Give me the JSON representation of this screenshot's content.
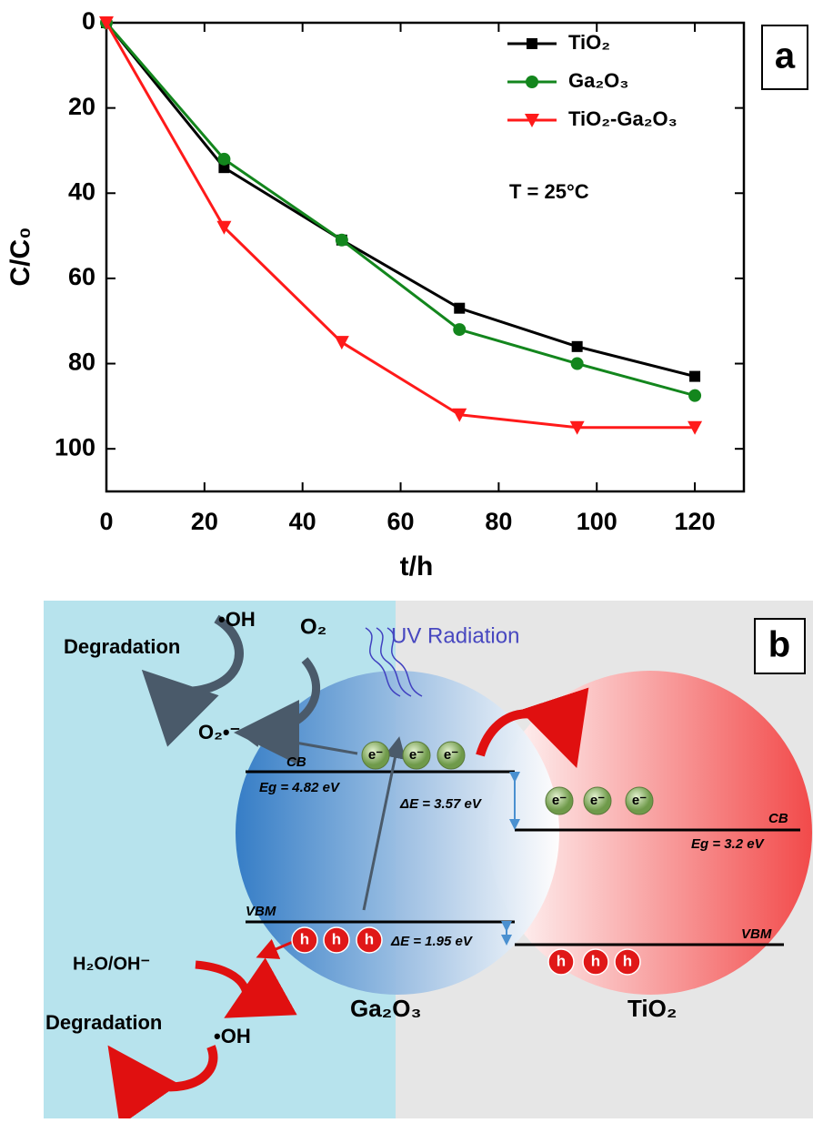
{
  "chart_data": {
    "type": "line",
    "panel_label": "a",
    "x_label": "t/h",
    "y_label": "C/C₀",
    "annotation": "T = 25°C",
    "x": [
      0,
      24,
      48,
      72,
      96,
      120
    ],
    "series": [
      {
        "name": "TiO₂",
        "color": "#000000",
        "marker": "square",
        "values": [
          0,
          34,
          51,
          67,
          76,
          83
        ]
      },
      {
        "name": "Ga₂O₃",
        "color": "#13861d",
        "marker": "circle",
        "values": [
          0,
          32,
          51,
          72,
          80,
          87.5
        ]
      },
      {
        "name": "TiO₂-Ga₂O₃",
        "color": "#ff1a1a",
        "marker": "triangle-down",
        "values": [
          0,
          48,
          75,
          92,
          95,
          95
        ]
      }
    ],
    "xlim": [
      0,
      130
    ],
    "xticks": [
      0,
      20,
      40,
      60,
      80,
      100,
      120
    ],
    "ylim": [
      0,
      110
    ],
    "yticks": [
      0,
      20,
      40,
      60,
      80,
      100
    ],
    "y_inverted": true
  },
  "diagram": {
    "panel_label": "b",
    "uv": "UV Radiation",
    "degradation_top": "Degradation",
    "oh_top": "•OH",
    "o2": "O₂",
    "superoxide": "O₂•⁻",
    "ga_cb": "CB",
    "ga_eg": "Eg = 4.82 eV",
    "de_cb": "ΔE = 3.57 eV",
    "ti_cb": "CB",
    "ti_eg": "Eg = 3.2 eV",
    "ga_vbm": "VBM",
    "de_vb": "ΔE = 1.95 eV",
    "ti_vbm": "VBM",
    "h2o": "H₂O/OH⁻",
    "ga_label": "Ga₂O₃",
    "ti_label": "TiO₂",
    "degradation_bottom": "Degradation",
    "oh_bottom": "•OH",
    "electrons": [
      "e⁻",
      "e⁻",
      "e⁻",
      "e⁻",
      "e⁻",
      "e⁻"
    ],
    "holes": [
      "h",
      "h",
      "h",
      "h",
      "h",
      "h"
    ]
  }
}
